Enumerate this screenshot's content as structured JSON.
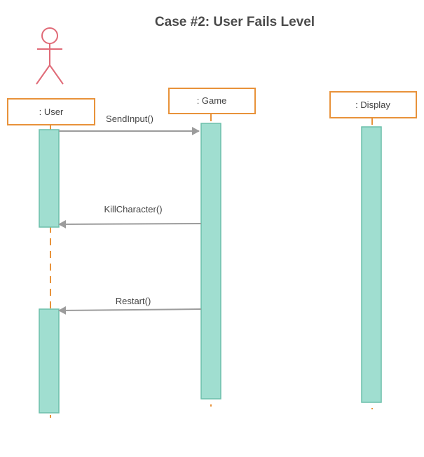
{
  "title": "Case #2: User Fails Level",
  "colors": {
    "actor": "#e06a77",
    "box_border": "#e8923a",
    "lifeline": "#e8923a",
    "activation_fill": "#a0ded0",
    "activation_border": "#6cbfaa",
    "arrow": "#9c9c9c",
    "text": "#444444"
  },
  "actor": {
    "icon": "stick-figure-icon"
  },
  "participants": [
    {
      "id": "user",
      "label": ": User"
    },
    {
      "id": "game",
      "label": ": Game"
    },
    {
      "id": "display",
      "label": ": Display"
    }
  ],
  "messages": [
    {
      "from": "user",
      "to": "game",
      "label": "SendInput()"
    },
    {
      "from": "game",
      "to": "user",
      "label": "KillCharacter()"
    },
    {
      "from": "game",
      "to": "user",
      "label": "Restart()"
    }
  ]
}
